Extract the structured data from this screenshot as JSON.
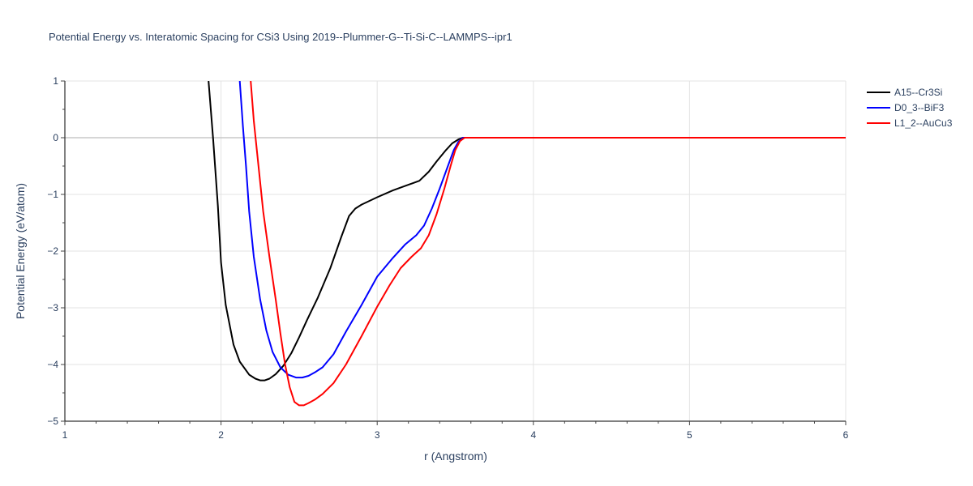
{
  "chart_data": {
    "type": "line",
    "title": "Potential Energy vs. Interatomic Spacing for CSi3 Using 2019--Plummer-G--Ti-Si-C--LAMMPS--ipr1",
    "xlabel": "r (Angstrom)",
    "ylabel": "Potential Energy (eV/atom)",
    "xlim": [
      1,
      6
    ],
    "ylim": [
      -5,
      1
    ],
    "xticks": [
      1,
      2,
      3,
      4,
      5,
      6
    ],
    "yticks": [
      1,
      0,
      -1,
      -2,
      -3,
      -4,
      -5
    ],
    "grid": true,
    "legend_position": "top-right",
    "series": [
      {
        "name": "A15--Cr3Si",
        "color": "#000000",
        "x": [
          1.92,
          1.95,
          1.98,
          2.0,
          2.03,
          2.08,
          2.12,
          2.18,
          2.22,
          2.25,
          2.28,
          2.31,
          2.35,
          2.4,
          2.45,
          2.5,
          2.55,
          2.62,
          2.7,
          2.77,
          2.82,
          2.86,
          2.9,
          3.0,
          3.1,
          3.2,
          3.27,
          3.33,
          3.38,
          3.44,
          3.48,
          3.52,
          3.55,
          3.6,
          6.0
        ],
        "y": [
          1.0,
          -0.05,
          -1.2,
          -2.2,
          -2.95,
          -3.65,
          -3.95,
          -4.18,
          -4.25,
          -4.28,
          -4.28,
          -4.25,
          -4.17,
          -4.02,
          -3.8,
          -3.52,
          -3.22,
          -2.82,
          -2.3,
          -1.75,
          -1.38,
          -1.25,
          -1.18,
          -1.05,
          -0.93,
          -0.83,
          -0.76,
          -0.6,
          -0.42,
          -0.22,
          -0.1,
          -0.03,
          0.0,
          0.0,
          0.0
        ]
      },
      {
        "name": "D0_3--BiF3",
        "color": "#0000ff",
        "x": [
          2.12,
          2.14,
          2.16,
          2.18,
          2.21,
          2.25,
          2.29,
          2.33,
          2.38,
          2.43,
          2.48,
          2.52,
          2.56,
          2.6,
          2.65,
          2.72,
          2.8,
          2.9,
          3.0,
          3.1,
          3.18,
          3.25,
          3.3,
          3.35,
          3.4,
          3.45,
          3.49,
          3.52,
          3.55,
          3.6,
          6.0
        ],
        "y": [
          1.0,
          0.2,
          -0.5,
          -1.3,
          -2.1,
          -2.85,
          -3.4,
          -3.78,
          -4.05,
          -4.18,
          -4.23,
          -4.23,
          -4.2,
          -4.14,
          -4.05,
          -3.82,
          -3.42,
          -2.95,
          -2.45,
          -2.12,
          -1.88,
          -1.72,
          -1.55,
          -1.25,
          -0.9,
          -0.52,
          -0.22,
          -0.07,
          0.0,
          0.0,
          0.0
        ]
      },
      {
        "name": "L1_2--AuCu3",
        "color": "#ff0000",
        "x": [
          2.19,
          2.21,
          2.24,
          2.27,
          2.31,
          2.35,
          2.38,
          2.41,
          2.44,
          2.47,
          2.5,
          2.53,
          2.56,
          2.6,
          2.65,
          2.72,
          2.8,
          2.9,
          3.0,
          3.08,
          3.15,
          3.22,
          3.28,
          3.33,
          3.38,
          3.43,
          3.47,
          3.5,
          3.53,
          3.56,
          3.6,
          6.0
        ],
        "y": [
          1.0,
          0.3,
          -0.5,
          -1.3,
          -2.1,
          -2.85,
          -3.45,
          -4.0,
          -4.4,
          -4.66,
          -4.72,
          -4.72,
          -4.68,
          -4.62,
          -4.52,
          -4.33,
          -4.0,
          -3.5,
          -2.98,
          -2.6,
          -2.3,
          -2.1,
          -1.95,
          -1.72,
          -1.35,
          -0.9,
          -0.5,
          -0.22,
          -0.06,
          0.0,
          0.0,
          0.0
        ]
      }
    ]
  }
}
